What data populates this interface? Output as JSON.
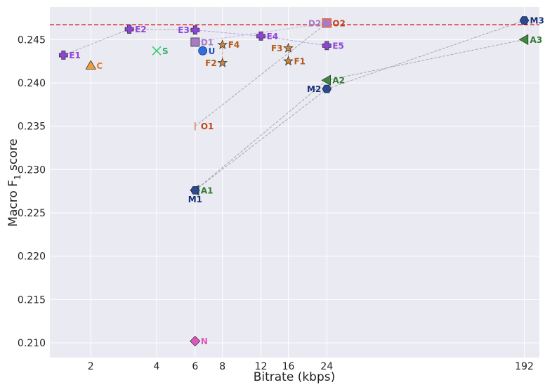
{
  "chart_data": {
    "type": "scatter",
    "title": "",
    "xlabel": "Bitrate (kbps)",
    "ylabel_main": "Macro F",
    "ylabel_sub": "1",
    "ylabel_tail": " score",
    "x_scale": "log",
    "xlim": [
      1.3,
      225
    ],
    "ylim": [
      0.2083,
      0.24875
    ],
    "x_ticks": [
      {
        "value": 2,
        "label": "2"
      },
      {
        "value": 4,
        "label": "4"
      },
      {
        "value": 6,
        "label": "6"
      },
      {
        "value": 8,
        "label": "8"
      },
      {
        "value": 12,
        "label": "12"
      },
      {
        "value": 16,
        "label": "16"
      },
      {
        "value": 24,
        "label": "24"
      },
      {
        "value": 192,
        "label": "192"
      }
    ],
    "y_ticks": [
      {
        "value": 0.21,
        "label": "0.210"
      },
      {
        "value": 0.215,
        "label": "0.215"
      },
      {
        "value": 0.22,
        "label": "0.220"
      },
      {
        "value": 0.225,
        "label": "0.225"
      },
      {
        "value": 0.23,
        "label": "0.230"
      },
      {
        "value": 0.235,
        "label": "0.235"
      },
      {
        "value": 0.24,
        "label": "0.240"
      },
      {
        "value": 0.245,
        "label": "0.245"
      }
    ],
    "grid": true,
    "reference_line": {
      "y": 0.2467,
      "color": "#dd1111",
      "style": "dashed"
    },
    "points": [
      {
        "id": "E1",
        "label": "E1",
        "x": 1.5,
        "y": 0.2432,
        "marker": "plus",
        "color": "#8e44d9",
        "label_color": "#8e44d9",
        "label_pos": "right"
      },
      {
        "id": "E2",
        "label": "E2",
        "x": 3,
        "y": 0.2462,
        "marker": "plus",
        "color": "#8e44d9",
        "label_color": "#8e44d9",
        "label_pos": "right"
      },
      {
        "id": "E3",
        "label": "E3",
        "x": 6,
        "y": 0.2461,
        "marker": "plus",
        "color": "#8e44d9",
        "label_color": "#8e44d9",
        "label_pos": "left"
      },
      {
        "id": "E4",
        "label": "E4",
        "x": 12,
        "y": 0.2454,
        "marker": "plus",
        "color": "#8e44d9",
        "label_color": "#8e44d9",
        "label_pos": "right"
      },
      {
        "id": "E5",
        "label": "E5",
        "x": 24,
        "y": 0.2443,
        "marker": "plus",
        "color": "#8e44d9",
        "label_color": "#8e44d9",
        "label_pos": "right"
      },
      {
        "id": "C",
        "label": "C",
        "x": 2,
        "y": 0.242,
        "marker": "triangle-up",
        "color": "#f39c3c",
        "label_color": "#e67e22",
        "label_pos": "right"
      },
      {
        "id": "S",
        "label": "S",
        "x": 4,
        "y": 0.2437,
        "marker": "x",
        "color": "#2ecc71",
        "label_color": "#27ae60",
        "label_pos": "right"
      },
      {
        "id": "D1",
        "label": "D1",
        "x": 6,
        "y": 0.2447,
        "marker": "square",
        "color": "#a77cc4",
        "label_color": "#a77cc4",
        "label_pos": "right"
      },
      {
        "id": "D2",
        "label": "D2",
        "x": 24,
        "y": 0.2469,
        "marker": "square",
        "color": "#a77cc4",
        "label_color": "#a77cc4",
        "label_pos": "left"
      },
      {
        "id": "U",
        "label": "U",
        "x": 6.5,
        "y": 0.2437,
        "marker": "circle",
        "color": "#2f6ee0",
        "label_color": "#1f50c0",
        "label_pos": "right"
      },
      {
        "id": "F1",
        "label": "F1",
        "x": 16,
        "y": 0.2425,
        "marker": "star",
        "color": "#d4873a",
        "label_color": "#b35a1a",
        "label_pos": "right"
      },
      {
        "id": "F2",
        "label": "F2",
        "x": 8,
        "y": 0.2423,
        "marker": "star",
        "color": "#d4873a",
        "label_color": "#b35a1a",
        "label_pos": "left"
      },
      {
        "id": "F3",
        "label": "F3",
        "x": 16,
        "y": 0.244,
        "marker": "star",
        "color": "#d4873a",
        "label_color": "#b35a1a",
        "label_pos": "left"
      },
      {
        "id": "F4",
        "label": "F4",
        "x": 8,
        "y": 0.2444,
        "marker": "star",
        "color": "#d4873a",
        "label_color": "#b35a1a",
        "label_pos": "right"
      },
      {
        "id": "O1",
        "label": "O1",
        "x": 6,
        "y": 0.235,
        "marker": "vline",
        "color": "#e08060",
        "label_color": "#c0441a",
        "label_pos": "right"
      },
      {
        "id": "O2",
        "label": "O2",
        "x": 24,
        "y": 0.2469,
        "marker": "square-open",
        "color": "#e06a4a",
        "label_color": "#c0441a",
        "label_pos": "right"
      },
      {
        "id": "A1",
        "label": "A1",
        "x": 6,
        "y": 0.2276,
        "marker": "triangle-left",
        "color": "#3d8b3d",
        "label_color": "#2e7d32",
        "label_pos": "right"
      },
      {
        "id": "A2",
        "label": "A2",
        "x": 24,
        "y": 0.2403,
        "marker": "triangle-left",
        "color": "#3d8b3d",
        "label_color": "#2e7d32",
        "label_pos": "right"
      },
      {
        "id": "A3",
        "label": "A3",
        "x": 192,
        "y": 0.245,
        "marker": "triangle-left",
        "color": "#3d8b3d",
        "label_color": "#2e7d32",
        "label_pos": "right"
      },
      {
        "id": "M1",
        "label": "M1",
        "x": 6,
        "y": 0.2276,
        "marker": "hexagon",
        "color": "#2c4a8c",
        "label_color": "#17307a",
        "label_pos": "below"
      },
      {
        "id": "M2",
        "label": "M2",
        "x": 24,
        "y": 0.2393,
        "marker": "hexagon",
        "color": "#2c4a8c",
        "label_color": "#17307a",
        "label_pos": "left"
      },
      {
        "id": "M3",
        "label": "M3",
        "x": 192,
        "y": 0.2472,
        "marker": "hexagon",
        "color": "#2c4a8c",
        "label_color": "#17307a",
        "label_pos": "right"
      },
      {
        "id": "N",
        "label": "N",
        "x": 6,
        "y": 0.2102,
        "marker": "diamond",
        "color": "#e056c0",
        "label_color": "#e056c0",
        "label_pos": "right"
      }
    ],
    "connectors": [
      {
        "from": "E1",
        "to": "E2",
        "color": "#b0b0b0"
      },
      {
        "from": "E2",
        "to": "E3",
        "color": "#b0b0b0"
      },
      {
        "from": "E3",
        "to": "E4",
        "color": "#b7a0e8"
      },
      {
        "from": "E4",
        "to": "E5",
        "color": "#b7a0e8"
      },
      {
        "from": "D1",
        "to": "D2",
        "color": "#c8b8e0"
      },
      {
        "from": "F2",
        "to": "F4",
        "color": "#c9a58a"
      },
      {
        "from": "F1",
        "to": "F3",
        "color": "#c9a58a"
      },
      {
        "from": "O1",
        "to": "O2",
        "color": "#a8a8a8"
      },
      {
        "from": "A1",
        "to": "A2",
        "color": "#a8a8a8"
      },
      {
        "from": "A2",
        "to": "A3",
        "color": "#a8a8a8"
      },
      {
        "from": "M1",
        "to": "M2",
        "color": "#a8a8a8"
      },
      {
        "from": "M2",
        "to": "M3",
        "color": "#a8a8a8"
      }
    ]
  }
}
